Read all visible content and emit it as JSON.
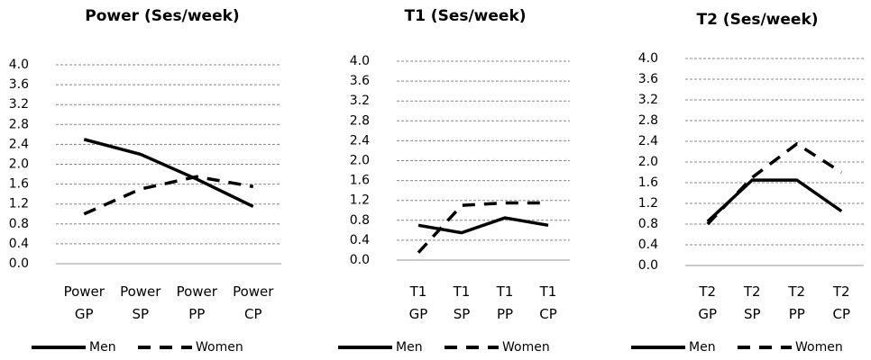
{
  "chart_data": [
    {
      "type": "line",
      "title": "Power (Ses/week)",
      "categories": [
        "Power GP",
        "Power SP",
        "Power PP",
        "Power CP"
      ],
      "series": [
        {
          "name": "Men",
          "color": "#000000",
          "line_style": "solid",
          "values": [
            2.5,
            2.2,
            1.7,
            1.15
          ]
        },
        {
          "name": "Women",
          "color": "#000000",
          "line_style": "dashed",
          "values": [
            1.0,
            1.5,
            1.75,
            1.55
          ]
        }
      ],
      "ylim": [
        0,
        4
      ],
      "yticks": [
        {
          "value": 0,
          "label": "0.0"
        },
        0.4,
        0.8,
        1.2,
        1.6,
        {
          "value": 2,
          "label": "2.0"
        },
        2.4,
        2.8,
        3.2,
        3.6,
        {
          "value": 4,
          "label": "4.0"
        }
      ],
      "grid": true,
      "legend": "bottom"
    },
    {
      "type": "line",
      "title": "T1 (Ses/week)",
      "categories": [
        "T1 GP",
        "T1 SP",
        "T1 PP",
        "T1 CP"
      ],
      "series": [
        {
          "name": "Men",
          "color": "#000000",
          "line_style": "solid",
          "values": [
            0.7,
            0.55,
            0.85,
            0.7
          ]
        },
        {
          "name": "Women",
          "color": "#000000",
          "line_style": "dashed",
          "values": [
            0.15,
            1.1,
            1.15,
            1.15
          ]
        }
      ],
      "ylim": [
        0,
        4
      ],
      "yticks": [
        {
          "value": 0,
          "label": "0.0"
        },
        0.4,
        0.8,
        1.2,
        1.6,
        {
          "value": 2,
          "label": "2.0"
        },
        2.4,
        2.8,
        3.2,
        3.6,
        {
          "value": 4,
          "label": "4.0"
        }
      ],
      "grid": true,
      "legend": "bottom"
    },
    {
      "type": "line",
      "title": "T2 (Ses/week)",
      "categories": [
        "T2 GP",
        "T2 SP",
        "T2 PP",
        "T2 CP"
      ],
      "series": [
        {
          "name": "Men",
          "color": "#000000",
          "line_style": "solid",
          "values": [
            0.85,
            1.65,
            1.65,
            1.05
          ]
        },
        {
          "name": "Women",
          "color": "#000000",
          "line_style": "dashed",
          "values": [
            0.8,
            1.7,
            2.35,
            1.8
          ]
        }
      ],
      "ylim": [
        0,
        4
      ],
      "yticks": [
        {
          "value": 0,
          "label": "0.0"
        },
        0.4,
        0.8,
        1.2,
        1.6,
        {
          "value": 2,
          "label": "2.0"
        },
        2.4,
        2.8,
        3.2,
        3.6,
        {
          "value": 4,
          "label": "4.0"
        }
      ],
      "grid": true,
      "legend": "bottom"
    }
  ]
}
